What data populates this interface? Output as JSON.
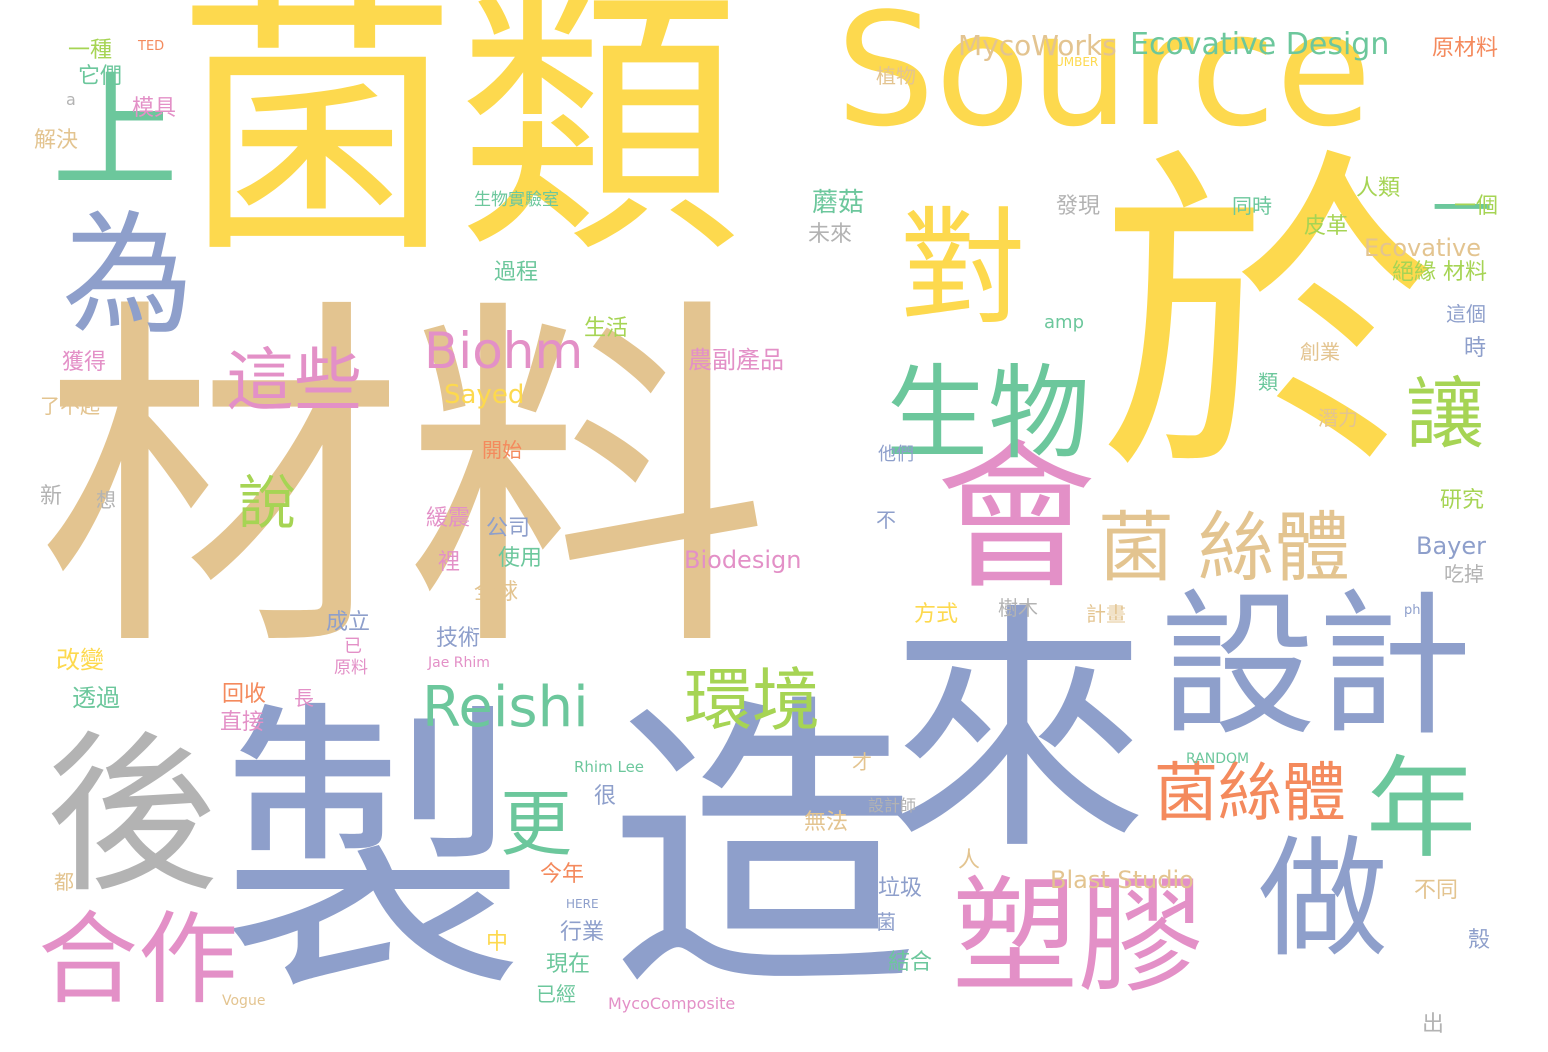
{
  "palette": {
    "yellow": "#fdd94e",
    "tan": "#e3c490",
    "blue": "#8e9fcb",
    "pink": "#e390c7",
    "green": "#6cc79c",
    "orange": "#f48a5d",
    "lime": "#a6d454",
    "gray": "#b3b3b3"
  },
  "words": [
    {
      "text": "菌類",
      "color": "yellow"
    },
    {
      "text": "Source",
      "color": "yellow"
    },
    {
      "text": "材料",
      "color": "tan"
    },
    {
      "text": "於",
      "color": "yellow"
    },
    {
      "text": "製",
      "color": "blue"
    },
    {
      "text": "造",
      "color": "blue"
    },
    {
      "text": "來",
      "color": "blue"
    },
    {
      "text": "後",
      "color": "gray"
    },
    {
      "text": "設計",
      "color": "blue"
    },
    {
      "text": "會",
      "color": "pink"
    },
    {
      "text": "對",
      "color": "yellow"
    },
    {
      "text": "為",
      "color": "blue"
    },
    {
      "text": "上",
      "color": "green"
    },
    {
      "text": "生物",
      "color": "green"
    },
    {
      "text": "塑膠",
      "color": "pink"
    },
    {
      "text": "做",
      "color": "blue"
    },
    {
      "text": "合作",
      "color": "pink"
    },
    {
      "text": "菌 絲體",
      "color": "tan"
    },
    {
      "text": "年",
      "color": "green"
    },
    {
      "text": "菌絲體",
      "color": "orange"
    },
    {
      "text": "環境",
      "color": "lime"
    },
    {
      "text": "Reishi",
      "color": "green"
    },
    {
      "text": "更",
      "color": "green"
    },
    {
      "text": "這些",
      "color": "pink"
    },
    {
      "text": "Biohm",
      "color": "pink"
    },
    {
      "text": "讓",
      "color": "lime"
    },
    {
      "text": "說",
      "color": "lime"
    },
    {
      "text": "Ecovative Design",
      "color": "green"
    },
    {
      "text": "MycoWorks",
      "color": "tan"
    },
    {
      "text": "一",
      "color": "green"
    },
    {
      "text": "蘑菇",
      "color": "green"
    },
    {
      "text": "Sayed",
      "color": "yellow"
    },
    {
      "text": "Biodesign",
      "color": "pink"
    },
    {
      "text": "農副產品",
      "color": "pink"
    },
    {
      "text": "Ecovative",
      "color": "tan"
    },
    {
      "text": "Blast Studio",
      "color": "tan"
    },
    {
      "text": "Bayer",
      "color": "blue"
    },
    {
      "text": "原材料",
      "color": "orange"
    },
    {
      "text": "一種",
      "color": "lime"
    },
    {
      "text": "它們",
      "color": "green"
    },
    {
      "text": "模具",
      "color": "pink"
    },
    {
      "text": "解決",
      "color": "tan"
    },
    {
      "text": "TED",
      "color": "orange"
    },
    {
      "text": "植物",
      "color": "tan"
    },
    {
      "text": "NUMBER",
      "color": "yellow"
    },
    {
      "text": "生物實驗室",
      "color": "green"
    },
    {
      "text": "人類",
      "color": "lime"
    },
    {
      "text": "一個",
      "color": "lime"
    },
    {
      "text": "皮革",
      "color": "lime"
    },
    {
      "text": "同時",
      "color": "green"
    },
    {
      "text": "絕緣 材料",
      "color": "lime"
    },
    {
      "text": "發現",
      "color": "gray"
    },
    {
      "text": "未來",
      "color": "gray"
    },
    {
      "text": "過程",
      "color": "green"
    },
    {
      "text": "生活",
      "color": "lime"
    },
    {
      "text": "獲得",
      "color": "pink"
    },
    {
      "text": "了不起",
      "color": "tan"
    },
    {
      "text": "開始",
      "color": "orange"
    },
    {
      "text": "新",
      "color": "gray"
    },
    {
      "text": "想",
      "color": "gray"
    },
    {
      "text": "緩震",
      "color": "pink"
    },
    {
      "text": "公司",
      "color": "blue"
    },
    {
      "text": "使用",
      "color": "green"
    },
    {
      "text": "裡",
      "color": "pink"
    },
    {
      "text": "全球",
      "color": "tan"
    },
    {
      "text": "技術",
      "color": "blue"
    },
    {
      "text": "成立",
      "color": "blue"
    },
    {
      "text": "改變",
      "color": "yellow"
    },
    {
      "text": "透過",
      "color": "green"
    },
    {
      "text": "回收",
      "color": "orange"
    },
    {
      "text": "直接",
      "color": "pink"
    },
    {
      "text": "方式",
      "color": "yellow"
    },
    {
      "text": "樹木",
      "color": "gray"
    },
    {
      "text": "計畫",
      "color": "tan"
    },
    {
      "text": "研究",
      "color": "lime"
    },
    {
      "text": "吃掉",
      "color": "gray"
    },
    {
      "text": "潛力",
      "color": "tan"
    },
    {
      "text": "這個",
      "color": "blue"
    },
    {
      "text": "創業",
      "color": "tan"
    },
    {
      "text": "時",
      "color": "blue"
    },
    {
      "text": "類",
      "color": "green"
    },
    {
      "text": "amp",
      "color": "green"
    },
    {
      "text": "他們",
      "color": "blue"
    },
    {
      "text": "不",
      "color": "blue"
    },
    {
      "text": "無法",
      "color": "tan"
    },
    {
      "text": "設計師",
      "color": "gray"
    },
    {
      "text": "很",
      "color": "blue"
    },
    {
      "text": "今年",
      "color": "orange"
    },
    {
      "text": "行業",
      "color": "blue"
    },
    {
      "text": "現在",
      "color": "green"
    },
    {
      "text": "已經",
      "color": "green"
    },
    {
      "text": "垃圾",
      "color": "blue"
    },
    {
      "text": "結合",
      "color": "green"
    },
    {
      "text": "不同",
      "color": "tan"
    },
    {
      "text": "殼",
      "color": "blue"
    },
    {
      "text": "出",
      "color": "gray"
    },
    {
      "text": "中",
      "color": "yellow"
    },
    {
      "text": "都",
      "color": "tan"
    },
    {
      "text": "人",
      "color": "tan"
    },
    {
      "text": "菌",
      "color": "blue"
    },
    {
      "text": "才",
      "color": "tan"
    },
    {
      "text": "原料",
      "color": "pink"
    },
    {
      "text": "長",
      "color": "pink"
    },
    {
      "text": "已",
      "color": "pink"
    },
    {
      "text": "Jae Rhim",
      "color": "pink"
    },
    {
      "text": "Rhim Lee",
      "color": "green"
    },
    {
      "text": "RANDOM",
      "color": "green"
    },
    {
      "text": "HERE",
      "color": "blue"
    },
    {
      "text": "MycoComposite",
      "color": "pink"
    },
    {
      "text": "Vogue",
      "color": "tan"
    },
    {
      "text": "a",
      "color": "gray"
    },
    {
      "text": "php",
      "color": "blue"
    }
  ]
}
